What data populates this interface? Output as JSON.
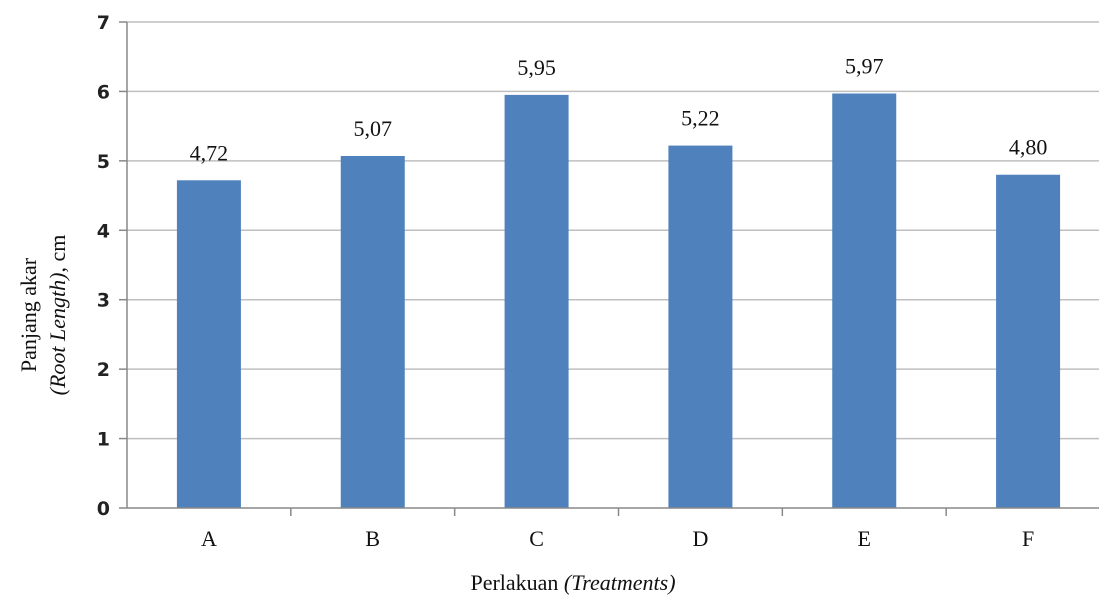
{
  "chart_data": {
    "type": "bar",
    "categories": [
      "A",
      "B",
      "C",
      "D",
      "E",
      "F"
    ],
    "values": [
      4.72,
      5.07,
      5.95,
      5.22,
      5.97,
      4.8
    ],
    "data_labels": [
      "4,72",
      "5,07",
      "5,95",
      "5,22",
      "5,97",
      "4,80"
    ],
    "ylim": [
      0,
      7
    ],
    "yticks": [
      "0",
      "1",
      "2",
      "3",
      "4",
      "5",
      "6",
      "7"
    ],
    "ylabel_line1": "Panjang akar",
    "ylabel_line2_italic": "(Root Length)",
    "ylabel_line2_rest": ", cm",
    "xlabel_main": "Perlakuan ",
    "xlabel_italic": "(Treatments)",
    "grid": true,
    "bar_color": "#4F81BD",
    "grid_color": "#BFBFBF"
  }
}
